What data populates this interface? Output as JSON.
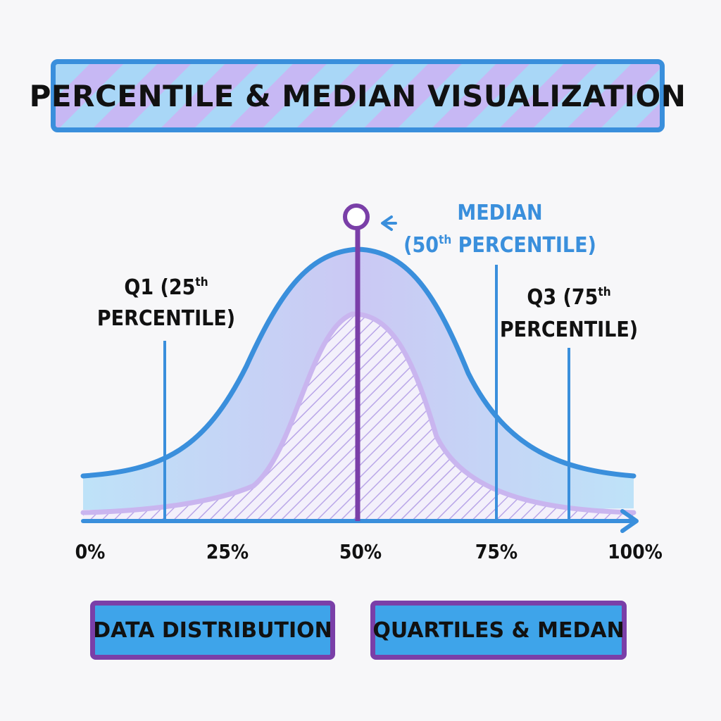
{
  "title": "PERCENTILE & MEDIAN VISUALIZATION",
  "annotations": {
    "median_line1": "MEDIAN",
    "median_line2_prefix": "(50",
    "median_line2_sup": "th",
    "median_line2_suffix": " PERCENTILE)",
    "q1_line1_prefix": "Q1 (25",
    "q1_line1_sup": "th",
    "q1_line2": "PERCENTILE)",
    "q3_line1_prefix": "Q3 (75",
    "q3_line1_sup": "th",
    "q3_line2": "PERCENTILE)"
  },
  "axis": {
    "ticks": [
      "0%",
      "25%",
      "50%",
      "75%",
      "100%"
    ]
  },
  "boxes": {
    "left": "DATA DISTRIBUTION",
    "right": "QUARTILES & MEDAN"
  },
  "colors": {
    "blue": "#3a8fdc",
    "purple": "#7a3fa8",
    "light_blue_fill": "#b9e2f8",
    "light_purple_fill": "#c9b5ef"
  }
}
